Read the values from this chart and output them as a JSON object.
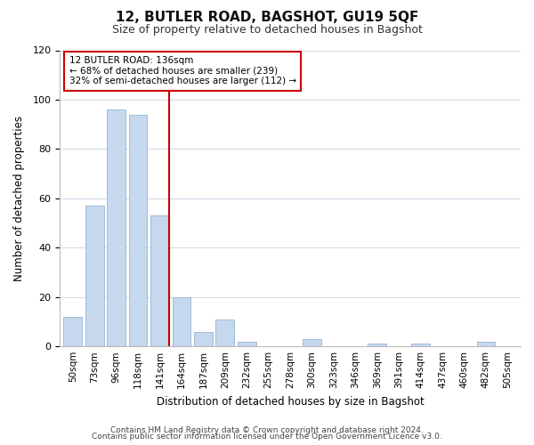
{
  "title": "12, BUTLER ROAD, BAGSHOT, GU19 5QF",
  "subtitle": "Size of property relative to detached houses in Bagshot",
  "xlabel": "Distribution of detached houses by size in Bagshot",
  "ylabel": "Number of detached properties",
  "bar_labels": [
    "50sqm",
    "73sqm",
    "96sqm",
    "118sqm",
    "141sqm",
    "164sqm",
    "187sqm",
    "209sqm",
    "232sqm",
    "255sqm",
    "278sqm",
    "300sqm",
    "323sqm",
    "346sqm",
    "369sqm",
    "391sqm",
    "414sqm",
    "437sqm",
    "460sqm",
    "482sqm",
    "505sqm"
  ],
  "bar_values": [
    12,
    57,
    96,
    94,
    53,
    20,
    6,
    11,
    2,
    0,
    0,
    3,
    0,
    0,
    1,
    0,
    1,
    0,
    0,
    2,
    0
  ],
  "bar_color": "#c5d8ed",
  "bar_edge_color": "#a0bcd8",
  "marker_index": 4,
  "marker_color": "#cc0000",
  "ylim": [
    0,
    120
  ],
  "yticks": [
    0,
    20,
    40,
    60,
    80,
    100,
    120
  ],
  "annotation_title": "12 BUTLER ROAD: 136sqm",
  "annotation_line1": "← 68% of detached houses are smaller (239)",
  "annotation_line2": "32% of semi-detached houses are larger (112) →",
  "annotation_box_color": "#ffffff",
  "annotation_box_edge": "#cc0000",
  "footer_line1": "Contains HM Land Registry data © Crown copyright and database right 2024.",
  "footer_line2": "Contains public sector information licensed under the Open Government Licence v3.0.",
  "background_color": "#ffffff",
  "grid_color": "#d0dce8"
}
